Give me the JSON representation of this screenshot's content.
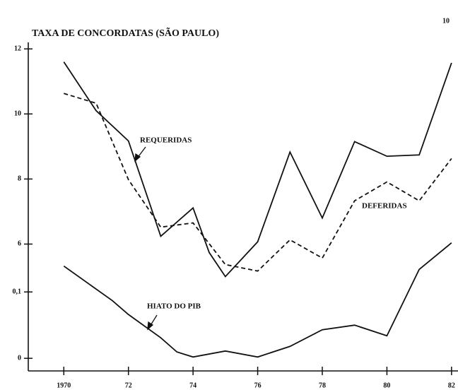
{
  "chart_data": {
    "type": "line",
    "title": "TAXA DE CONCORDATAS (SÃO PAULO)",
    "page_number": "10",
    "annotations": [
      "REQUERIDAS",
      "DEFERIDAS",
      "HIATO DO PIB"
    ],
    "xlim": [
      1968.9,
      1982.2
    ],
    "xticks": [
      {
        "value": 1970,
        "label": "1970"
      },
      {
        "value": 1972,
        "label": "72"
      },
      {
        "value": 1974,
        "label": "74"
      },
      {
        "value": 1976,
        "label": "76"
      },
      {
        "value": 1978,
        "label": "78"
      },
      {
        "value": 1980,
        "label": "80"
      },
      {
        "value": 1982,
        "label": "82"
      }
    ],
    "ylim": [
      2.1,
      12.2
    ],
    "yticks": [
      6,
      8,
      10,
      12
    ],
    "y2lim": [
      -0.019,
      0.476
    ],
    "y2ticks": [
      0,
      {
        "value": 0.1,
        "label": "0,1"
      }
    ],
    "series": [
      {
        "name": "REQUERIDAS",
        "color": "#111",
        "dash": false,
        "x": [
          1970,
          1971,
          1972,
          1973,
          1974,
          1974.5,
          1975,
          1976,
          1977,
          1978,
          1979,
          1980,
          1981,
          1982
        ],
        "values": [
          11.6,
          10.1,
          9.17,
          6.24,
          7.11,
          5.74,
          5.0,
          6.07,
          8.83,
          6.8,
          9.15,
          8.7,
          8.74,
          11.57
        ]
      },
      {
        "name": "DEFERIDAS",
        "color": "#111",
        "dash": true,
        "x": [
          1970,
          1971,
          1972,
          1973,
          1974,
          1975,
          1976,
          1977,
          1978,
          1979,
          1980,
          1981,
          1982
        ],
        "values": [
          10.63,
          10.33,
          7.98,
          6.52,
          6.65,
          5.37,
          5.17,
          6.13,
          5.57,
          7.33,
          7.91,
          7.33,
          8.63
        ]
      },
      {
        "name": "HIATO DO PIB",
        "color": "#111",
        "dash": false,
        "axis": "y2",
        "x": [
          1970,
          1971.5,
          1972,
          1973,
          1973.5,
          1974,
          1975,
          1976,
          1977,
          1978,
          1979,
          1980,
          1981,
          1982
        ],
        "values": [
          0.139,
          0.087,
          0.066,
          0.031,
          0.0096,
          0.002,
          0.011,
          0.002,
          0.018,
          0.043,
          0.05,
          0.034,
          0.134,
          0.174
        ]
      }
    ]
  }
}
